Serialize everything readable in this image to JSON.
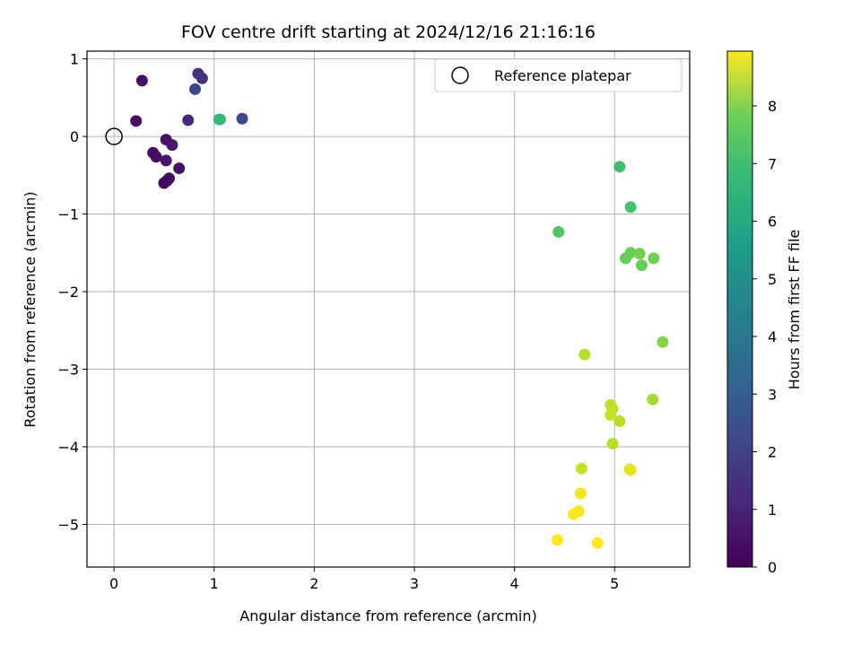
{
  "chart_data": {
    "type": "scatter",
    "title": "FOV centre drift starting at 2024/12/16 21:16:16",
    "xlabel": "Angular distance from reference (arcmin)",
    "ylabel": "Rotation from reference (arcmin)",
    "xlim": [
      -0.27,
      5.75
    ],
    "ylim": [
      -5.55,
      1.1
    ],
    "xticks": [
      0,
      1,
      2,
      3,
      4,
      5
    ],
    "yticks": [
      -5,
      -4,
      -3,
      -2,
      -1,
      0,
      1
    ],
    "xtick_labels": [
      "0",
      "1",
      "2",
      "3",
      "4",
      "5"
    ],
    "ytick_labels": [
      "−5",
      "−4",
      "−3",
      "−2",
      "−1",
      "0",
      "1"
    ],
    "grid": true,
    "legend": {
      "entries": [
        "Reference platepar"
      ],
      "placement": "top-right"
    },
    "reference_point": {
      "x": 0,
      "y": 0
    },
    "colorbar": {
      "label": "Hours from first FF file",
      "colormap": "viridis",
      "range": [
        0,
        8.95
      ],
      "ticks": [
        0,
        1,
        2,
        3,
        4,
        5,
        6,
        7,
        8
      ],
      "tick_labels": [
        "0",
        "1",
        "2",
        "3",
        "4",
        "5",
        "6",
        "7",
        "8"
      ]
    },
    "points": [
      {
        "x": 0.28,
        "y": 0.72,
        "c": 0.4
      },
      {
        "x": 0.22,
        "y": 0.2,
        "c": 0.3
      },
      {
        "x": 0.84,
        "y": 0.81,
        "c": 1.2
      },
      {
        "x": 0.88,
        "y": 0.75,
        "c": 1.3
      },
      {
        "x": 0.81,
        "y": 0.61,
        "c": 1.9
      },
      {
        "x": 0.74,
        "y": 0.21,
        "c": 1.0
      },
      {
        "x": 1.05,
        "y": 0.22,
        "c": 5.8
      },
      {
        "x": 1.06,
        "y": 0.22,
        "c": 6.0
      },
      {
        "x": 1.28,
        "y": 0.23,
        "c": 2.0
      },
      {
        "x": 0.52,
        "y": -0.04,
        "c": 0.5
      },
      {
        "x": 0.58,
        "y": -0.11,
        "c": 0.6
      },
      {
        "x": 0.39,
        "y": -0.21,
        "c": 0.3
      },
      {
        "x": 0.42,
        "y": -0.26,
        "c": 0.3
      },
      {
        "x": 0.52,
        "y": -0.31,
        "c": 0.5
      },
      {
        "x": 0.65,
        "y": -0.41,
        "c": 0.4
      },
      {
        "x": 0.55,
        "y": -0.54,
        "c": 0.3
      },
      {
        "x": 0.53,
        "y": -0.57,
        "c": 0.2
      },
      {
        "x": 0.5,
        "y": -0.6,
        "c": 0.2
      },
      {
        "x": 5.05,
        "y": -0.39,
        "c": 6.2
      },
      {
        "x": 5.16,
        "y": -0.91,
        "c": 6.3
      },
      {
        "x": 4.44,
        "y": -1.23,
        "c": 6.5
      },
      {
        "x": 5.16,
        "y": -1.5,
        "c": 6.9
      },
      {
        "x": 5.25,
        "y": -1.51,
        "c": 7.0
      },
      {
        "x": 5.11,
        "y": -1.57,
        "c": 6.9
      },
      {
        "x": 5.39,
        "y": -1.57,
        "c": 7.0
      },
      {
        "x": 5.27,
        "y": -1.66,
        "c": 6.9
      },
      {
        "x": 5.48,
        "y": -2.65,
        "c": 7.3
      },
      {
        "x": 4.7,
        "y": -2.81,
        "c": 7.9
      },
      {
        "x": 5.38,
        "y": -3.39,
        "c": 7.7
      },
      {
        "x": 4.96,
        "y": -3.46,
        "c": 8.1
      },
      {
        "x": 4.98,
        "y": -3.51,
        "c": 8.1
      },
      {
        "x": 4.96,
        "y": -3.59,
        "c": 8.2
      },
      {
        "x": 5.05,
        "y": -3.67,
        "c": 8.0
      },
      {
        "x": 4.98,
        "y": -3.96,
        "c": 8.0
      },
      {
        "x": 4.67,
        "y": -4.28,
        "c": 8.2
      },
      {
        "x": 5.15,
        "y": -4.29,
        "c": 8.6
      },
      {
        "x": 5.16,
        "y": -4.3,
        "c": 8.6
      },
      {
        "x": 4.66,
        "y": -4.6,
        "c": 8.8
      },
      {
        "x": 4.64,
        "y": -4.83,
        "c": 8.8
      },
      {
        "x": 4.59,
        "y": -4.87,
        "c": 8.9
      },
      {
        "x": 4.43,
        "y": -5.2,
        "c": 8.9
      },
      {
        "x": 4.83,
        "y": -5.24,
        "c": 8.9
      }
    ]
  }
}
